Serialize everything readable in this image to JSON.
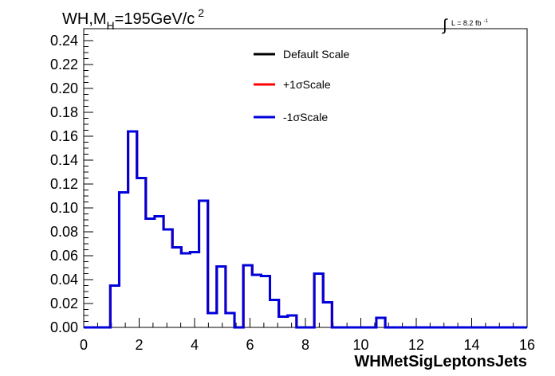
{
  "chart_data": {
    "type": "line",
    "title": "WH,M_H=195GeV/c^2",
    "title_parts": {
      "main": "WH,M",
      "sub": "H",
      "mid": "=195GeV/c",
      "sup": "2"
    },
    "lumi_label": {
      "integral": "∫",
      "text": "L = 8.2 fb",
      "sup": "-1"
    },
    "xlabel": "WHMetSigLeptonsJets",
    "ylabel": "",
    "xlim": [
      0,
      16
    ],
    "ylim": [
      0,
      0.25
    ],
    "x_ticks": [
      0,
      2,
      4,
      6,
      8,
      10,
      12,
      14,
      16
    ],
    "y_ticks": [
      0.0,
      0.02,
      0.04,
      0.06,
      0.08,
      0.1,
      0.12,
      0.14,
      0.16,
      0.18,
      0.2,
      0.22,
      0.24
    ],
    "y_tick_labels": [
      "0.00",
      "0.02",
      "0.04",
      "0.06",
      "0.08",
      "0.10",
      "0.12",
      "0.14",
      "0.16",
      "0.18",
      "0.20",
      "0.22",
      "0.24"
    ],
    "grid": false,
    "legend_position": "top-right",
    "bin_width": 0.32,
    "bin_edges_start": 0,
    "series": [
      {
        "name": "Default Scale",
        "color": "#000000"
      },
      {
        "name": "+1σScale",
        "color": "#ff0000"
      },
      {
        "name": "-1σScale",
        "color": "#0000dd"
      }
    ],
    "values": [
      0,
      0,
      0,
      0.035,
      0.113,
      0.164,
      0.125,
      0.091,
      0.093,
      0.082,
      0.067,
      0.062,
      0.063,
      0.106,
      0.012,
      0.051,
      0.012,
      0,
      0.052,
      0.044,
      0.043,
      0.023,
      0.009,
      0.01,
      0,
      0,
      0.045,
      0.021,
      0,
      0,
      0,
      0,
      0,
      0.008,
      0,
      0,
      0,
      0,
      0,
      0,
      0,
      0,
      0,
      0,
      0,
      0,
      0,
      0,
      0,
      0
    ]
  }
}
